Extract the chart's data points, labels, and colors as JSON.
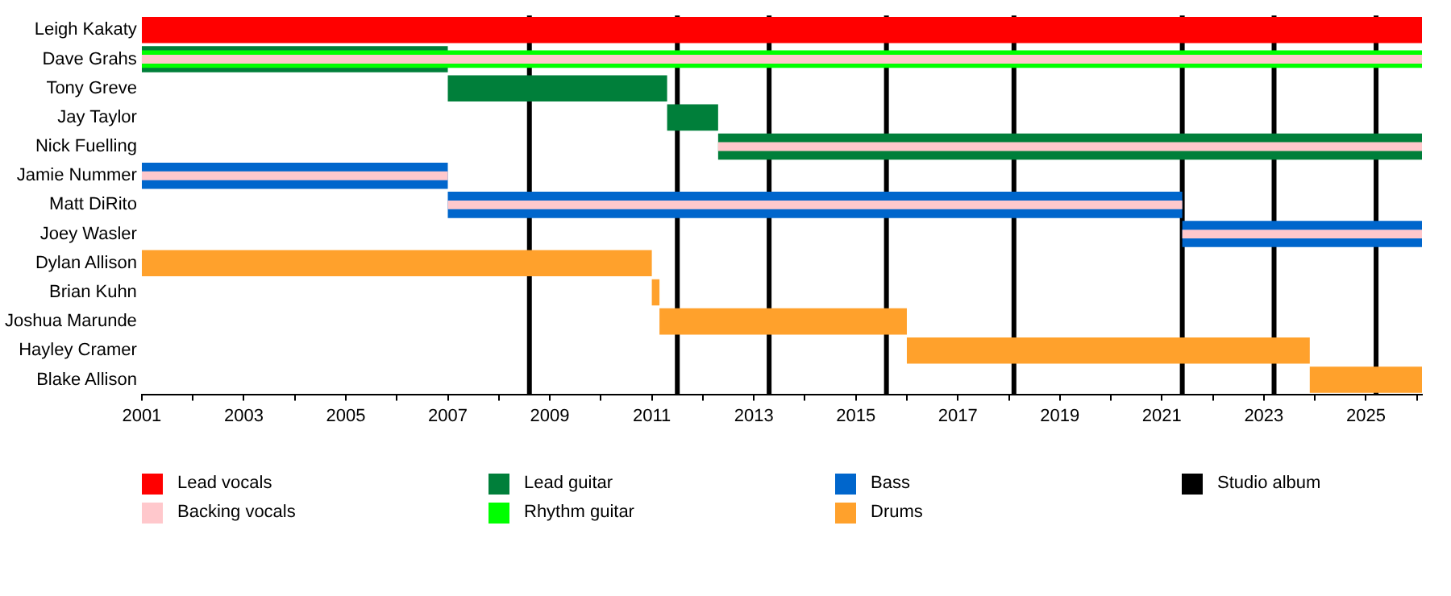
{
  "chart_data": {
    "type": "bar",
    "orientation": "horizontal",
    "legend": "bottom",
    "grid": false,
    "categories": [
      "Leigh Kakaty",
      "Dave Grahs",
      "Tony Greve",
      "Jay Taylor",
      "Nick Fuelling",
      "Jamie Nummer",
      "Matt DiRito",
      "Joey Wasler",
      "Dylan Allison",
      "Brian Kuhn",
      "Joshua Marunde",
      "Hayley Cramer",
      "Blake Allison"
    ],
    "series": [
      {
        "name": "Lead vocals",
        "color": "#ff0000",
        "base": [
          2001,
          null,
          null,
          null,
          null,
          null,
          null,
          null,
          null,
          null,
          null,
          null,
          null
        ],
        "values": [
          25.1,
          null,
          null,
          null,
          null,
          null,
          null,
          null,
          null,
          null,
          null,
          null,
          null
        ]
      },
      {
        "name": "Backing vocals",
        "color": "#ffc8cc",
        "base": [
          null,
          2001,
          null,
          null,
          2012.3,
          2001,
          2007,
          2021.4,
          null,
          null,
          null,
          null,
          null
        ],
        "values": [
          null,
          25.1,
          null,
          null,
          13.8,
          6,
          14.4,
          4.7,
          null,
          null,
          null,
          null,
          null
        ]
      },
      {
        "name": "Lead guitar",
        "color": "#007f3a",
        "base": [
          null,
          2001,
          2007,
          2011.3,
          2012.3,
          null,
          null,
          null,
          null,
          null,
          null,
          null,
          null
        ],
        "values": [
          null,
          6,
          4.3,
          1.0,
          13.8,
          null,
          null,
          null,
          null,
          null,
          null,
          null,
          null
        ]
      },
      {
        "name": "Rhythm guitar",
        "color": "#00ff00",
        "base": [
          null,
          2001,
          null,
          null,
          null,
          null,
          null,
          null,
          null,
          null,
          null,
          null,
          null
        ],
        "values": [
          null,
          25.1,
          null,
          null,
          null,
          null,
          null,
          null,
          null,
          null,
          null,
          null,
          null
        ]
      },
      {
        "name": "Bass",
        "color": "#0066cc",
        "base": [
          null,
          null,
          null,
          null,
          null,
          2001,
          2007,
          2021.4,
          null,
          null,
          null,
          null,
          null
        ],
        "values": [
          null,
          null,
          null,
          null,
          null,
          6,
          14.4,
          4.7,
          null,
          null,
          null,
          null,
          null
        ]
      },
      {
        "name": "Drums",
        "color": "#ffa12c",
        "base": [
          null,
          null,
          null,
          null,
          null,
          null,
          null,
          null,
          2001,
          2011.0,
          2011.15,
          2016.0,
          2023.9
        ],
        "values": [
          null,
          null,
          null,
          null,
          null,
          null,
          null,
          null,
          10,
          0.15,
          4.85,
          7.9,
          2.2
        ]
      }
    ],
    "xlim": [
      2001,
      2026.1
    ],
    "xticks": [
      2001,
      {
        "value": 2002,
        "label": null
      },
      2003,
      {
        "value": 2004,
        "label": null
      },
      2005,
      {
        "value": 2006,
        "label": null
      },
      2007,
      {
        "value": 2008,
        "label": null
      },
      2009,
      {
        "value": 2010,
        "label": null
      },
      2011,
      {
        "value": 2012,
        "label": null
      },
      2013,
      {
        "value": 2014,
        "label": null
      },
      2015,
      {
        "value": 2016,
        "label": null
      },
      2017,
      {
        "value": 2018,
        "label": null
      },
      2019,
      {
        "value": 2020,
        "label": null
      },
      2021,
      {
        "value": 2022,
        "label": null
      },
      2023,
      {
        "value": 2024,
        "label": null
      },
      2025,
      {
        "value": 2026,
        "label": null
      }
    ],
    "ref_lines": [
      {
        "axis": "x",
        "value": 2008.6,
        "label": "Studio album",
        "color": "#000000"
      },
      {
        "axis": "x",
        "value": 2011.5,
        "color": "#000000"
      },
      {
        "axis": "x",
        "value": 2013.3,
        "color": "#000000"
      },
      {
        "axis": "x",
        "value": 2015.6,
        "color": "#000000"
      },
      {
        "axis": "x",
        "value": 2018.1,
        "color": "#000000"
      },
      {
        "axis": "x",
        "value": 2021.4,
        "color": "#000000"
      },
      {
        "axis": "x",
        "value": 2023.2,
        "color": "#000000"
      },
      {
        "axis": "x",
        "value": 2025.2,
        "color": "#000000"
      }
    ]
  }
}
